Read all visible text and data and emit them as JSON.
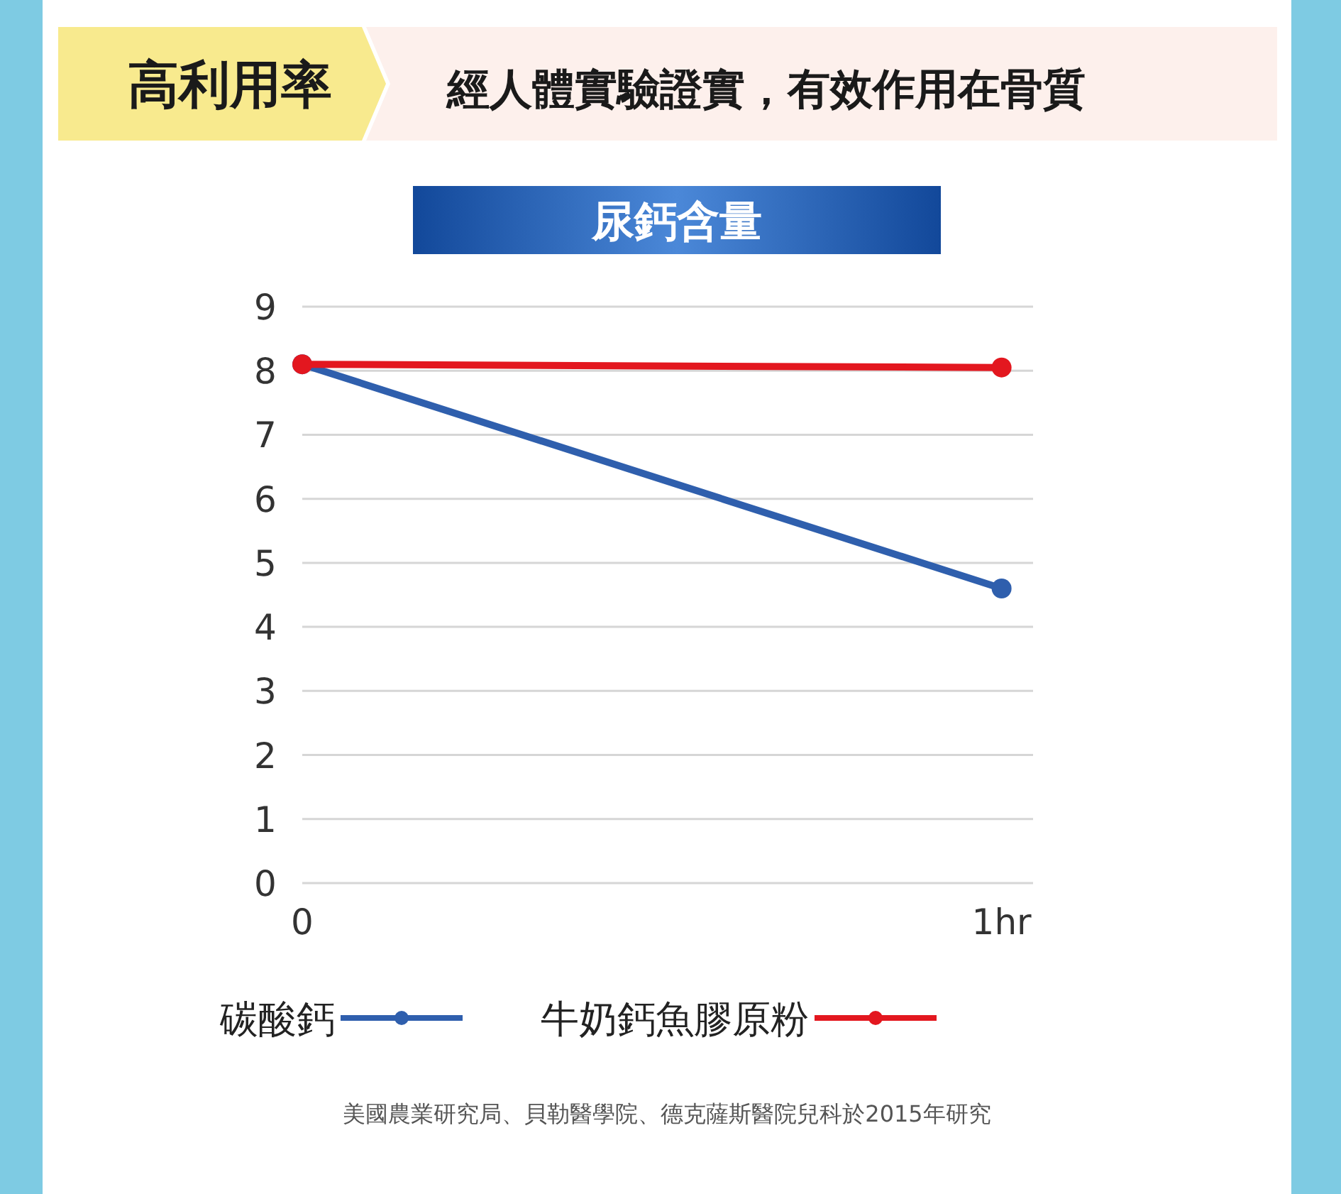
{
  "chart_data": {
    "type": "line",
    "title": "尿鈣含量",
    "annotations": [
      "高利用率",
      "經人體實驗證實，有效作用在骨質",
      "美國農業研究局、貝勒醫學院、德克薩斯醫院兒科於2015年研究"
    ],
    "x": [
      0,
      1
    ],
    "series": [
      {
        "name": "碳酸鈣",
        "color": "#2f5fad",
        "values": [
          8.1,
          4.6
        ]
      },
      {
        "name": "牛奶鈣魚膠原粉",
        "color": "#e3171f",
        "values": [
          8.1,
          8.05
        ]
      }
    ],
    "xlim": [
      0,
      1.045
    ],
    "xticks": [
      0,
      {
        "value": 1,
        "label": "1hr"
      }
    ],
    "ylim": [
      0,
      9
    ],
    "yticks": [
      0,
      1,
      2,
      3,
      4,
      5,
      6,
      7,
      8,
      9
    ],
    "grid": "y",
    "legend": "bottom",
    "marker": "circle"
  }
}
